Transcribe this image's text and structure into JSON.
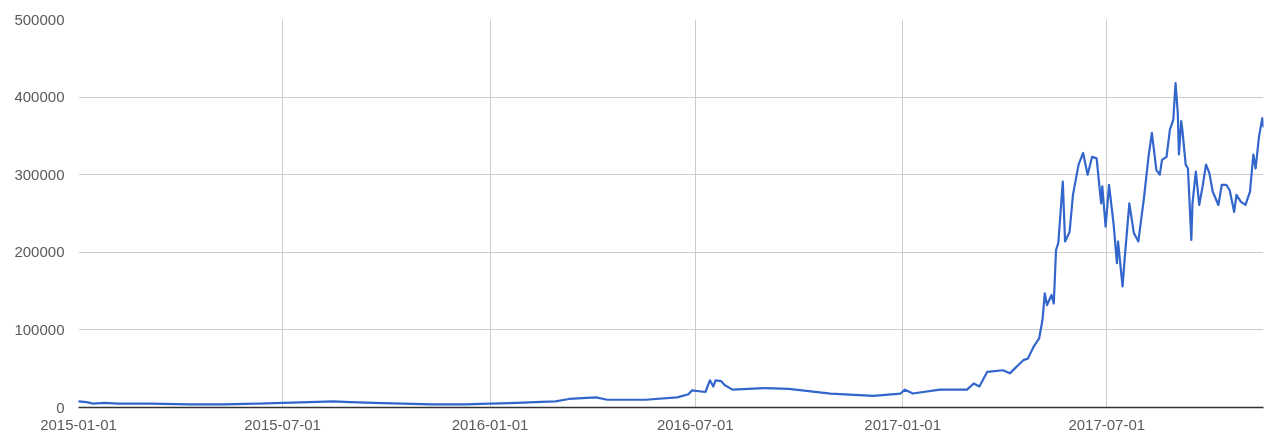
{
  "chart_data": {
    "type": "line",
    "x": [
      "2015-01-01",
      "2015-01-08",
      "2015-01-14",
      "2015-01-24",
      "2015-02-05",
      "2015-03-05",
      "2015-04-10",
      "2015-05-10",
      "2015-06-10",
      "2015-07-01",
      "2015-07-25",
      "2015-08-15",
      "2015-08-30",
      "2015-09-20",
      "2015-10-15",
      "2015-11-10",
      "2015-12-10",
      "2016-01-01",
      "2016-01-25",
      "2016-02-10",
      "2016-02-28",
      "2016-03-11",
      "2016-04-04",
      "2016-04-14",
      "2016-05-18",
      "2016-06-15",
      "2016-06-25",
      "2016-06-28",
      "2016-07-10",
      "2016-07-14",
      "2016-07-17",
      "2016-07-19",
      "2016-07-24",
      "2016-07-27",
      "2016-08-03",
      "2016-09-01",
      "2016-09-22",
      "2016-10-29",
      "2016-12-06",
      "2016-12-30",
      "2017-01-03",
      "2017-01-10",
      "2017-02-03",
      "2017-02-27",
      "2017-03-05",
      "2017-03-10",
      "2017-03-17",
      "2017-03-31",
      "2017-04-06",
      "2017-04-18",
      "2017-04-22",
      "2017-04-27",
      "2017-05-02",
      "2017-05-05",
      "2017-05-07",
      "2017-05-09",
      "2017-05-13",
      "2017-05-15",
      "2017-05-17",
      "2017-05-19",
      "2017-05-23",
      "2017-05-25",
      "2017-05-29",
      "2017-06-01",
      "2017-06-06",
      "2017-06-10",
      "2017-06-14",
      "2017-06-18",
      "2017-06-22",
      "2017-06-26",
      "2017-06-27",
      "2017-06-30",
      "2017-07-03",
      "2017-07-07",
      "2017-07-10",
      "2017-07-11",
      "2017-07-15",
      "2017-07-17",
      "2017-07-21",
      "2017-07-25",
      "2017-07-29",
      "2017-08-03",
      "2017-08-07",
      "2017-08-10",
      "2017-08-14",
      "2017-08-17",
      "2017-08-19",
      "2017-08-23",
      "2017-08-26",
      "2017-08-29",
      "2017-08-31",
      "2017-09-02",
      "2017-09-03",
      "2017-09-05",
      "2017-09-06",
      "2017-09-09",
      "2017-09-11",
      "2017-09-14",
      "2017-09-15",
      "2017-09-18",
      "2017-09-21",
      "2017-09-24",
      "2017-09-27",
      "2017-09-30",
      "2017-10-03",
      "2017-10-08",
      "2017-10-11",
      "2017-10-15",
      "2017-10-18",
      "2017-10-22",
      "2017-10-24",
      "2017-10-28",
      "2017-11-01",
      "2017-11-05",
      "2017-11-08",
      "2017-11-10",
      "2017-11-13",
      "2017-11-16",
      "2017-11-17"
    ],
    "series": [
      {
        "color": "#3366cc",
        "values": [
          8000,
          7000,
          5000,
          6000,
          5000,
          5000,
          4000,
          4000,
          5000,
          6000,
          7000,
          8000,
          7000,
          6000,
          5000,
          4000,
          4000,
          5000,
          6000,
          7000,
          8000,
          11000,
          13000,
          10000,
          10000,
          13000,
          17000,
          22000,
          20000,
          35000,
          27000,
          35000,
          34000,
          29000,
          23000,
          25000,
          24000,
          18000,
          15000,
          18000,
          23000,
          18000,
          23000,
          23000,
          31000,
          27000,
          46000,
          48000,
          44000,
          61000,
          63000,
          78000,
          89000,
          113000,
          147000,
          132000,
          145000,
          134000,
          203000,
          212000,
          291000,
          214000,
          226000,
          274000,
          313000,
          328000,
          300000,
          323000,
          321000,
          263000,
          285000,
          233000,
          287000,
          237000,
          186000,
          214000,
          156000,
          194000,
          263000,
          225000,
          214000,
          270000,
          323000,
          354000,
          306000,
          300000,
          319000,
          323000,
          358000,
          371000,
          418000,
          379000,
          326000,
          369000,
          358000,
          313000,
          308000,
          216000,
          263000,
          304000,
          261000,
          285000,
          313000,
          302000,
          278000,
          261000,
          287000,
          287000,
          280000,
          252000,
          274000,
          265000,
          261000,
          278000,
          326000,
          308000,
          349000,
          373000,
          362000
        ]
      }
    ],
    "xlim": [
      "2015-01-01",
      "2017-11-17"
    ],
    "xticks": [
      "2015-01-01",
      "2015-07-01",
      "2016-01-01",
      "2016-07-01",
      "2017-01-01",
      "2017-07-01"
    ],
    "ylim": [
      0,
      500000
    ],
    "yticks": [
      0,
      100000,
      200000,
      300000,
      400000,
      500000
    ],
    "grid": true
  }
}
